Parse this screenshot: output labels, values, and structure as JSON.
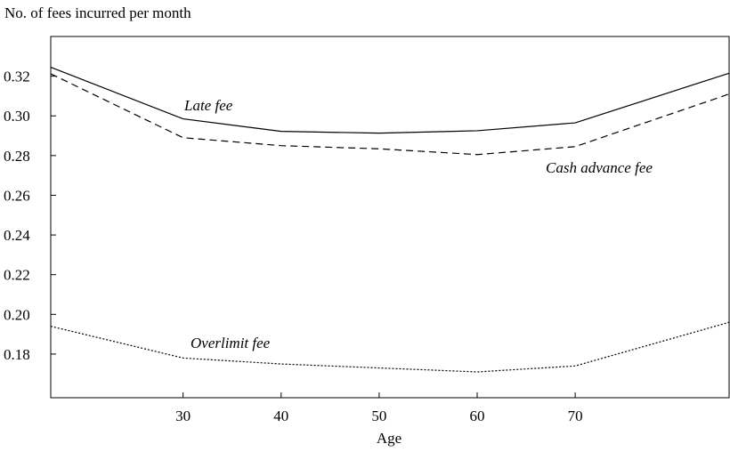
{
  "chart_data": {
    "type": "line",
    "y_axis_label": "No. of fees incurred per month",
    "x_axis_label": "Age",
    "x": [
      16.5,
      30,
      40,
      50,
      60,
      70,
      85.7
    ],
    "series": [
      {
        "name": "Late fee",
        "color": "#000000",
        "style": "solid",
        "values": [
          0.3245,
          0.2985,
          0.2922,
          0.2913,
          0.2925,
          0.2965,
          0.3215
        ]
      },
      {
        "name": "Cash advance fee",
        "color": "#000000",
        "style": "dashed",
        "values": [
          0.3212,
          0.289,
          0.285,
          0.2834,
          0.2805,
          0.2845,
          0.311
        ]
      },
      {
        "name": "Overlimit fee",
        "color": "#000000",
        "style": "dotted",
        "values": [
          0.194,
          0.178,
          0.175,
          0.173,
          0.171,
          0.174,
          0.196
        ]
      }
    ],
    "xlim": [
      16.5,
      85.7
    ],
    "xticks": [
      30,
      40,
      50,
      60,
      70
    ],
    "ylim": [
      0.158,
      0.34
    ],
    "yticks": [
      {
        "value": 0.18,
        "label": "0.18"
      },
      {
        "value": 0.2,
        "label": "0.20"
      },
      {
        "value": 0.22,
        "label": "0.22"
      },
      {
        "value": 0.24,
        "label": "0.24"
      },
      {
        "value": 0.26,
        "label": "0.26"
      },
      {
        "value": 0.28,
        "label": "0.28"
      },
      {
        "value": 0.3,
        "label": "0.30"
      },
      {
        "value": 0.32,
        "label": "0.32"
      }
    ],
    "grid": false
  }
}
